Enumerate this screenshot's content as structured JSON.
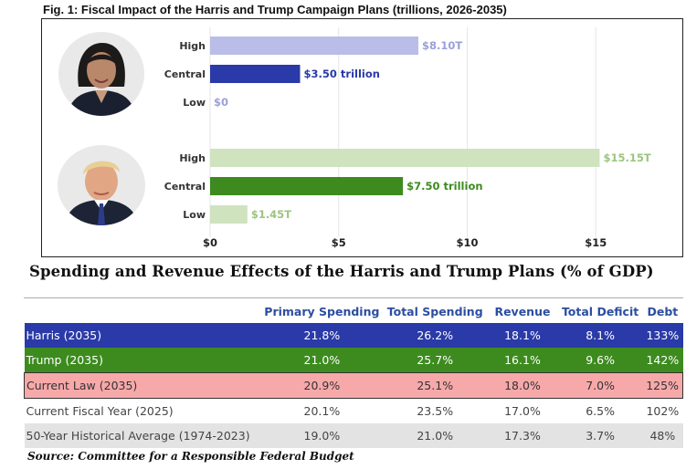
{
  "figure_title": "Fig. 1: Fiscal Impact of the Harris and Trump Campaign Plans (trillions, 2026-2035)",
  "chart_data": {
    "type": "bar",
    "orientation": "horizontal",
    "title": "Fig. 1: Fiscal Impact of the Harris and Trump Campaign Plans (trillions, 2026-2035)",
    "xlim": [
      0,
      17
    ],
    "xticks": [
      0,
      5,
      10,
      15
    ],
    "xtick_labels": [
      "$0",
      "$5",
      "$10",
      "$15"
    ],
    "grid": "vertical",
    "groups": [
      {
        "portrait": "kamala-harris-photo",
        "bars": [
          {
            "category": "High",
            "value": 8.1,
            "label": "$8.10T",
            "color": "#b9bde8",
            "label_color": "#9aa0d8"
          },
          {
            "category": "Central",
            "value": 3.5,
            "label": "$3.50 trillion",
            "color": "#2a3aa8",
            "label_color": "#2a3aa8"
          },
          {
            "category": "Low",
            "value": 0,
            "label": "$0",
            "color": "#b9bde8",
            "label_color": "#9aa0d8"
          }
        ]
      },
      {
        "portrait": "donald-trump-photo",
        "bars": [
          {
            "category": "High",
            "value": 15.15,
            "label": "$15.15T",
            "color": "#cfe3bf",
            "label_color": "#9cc47f"
          },
          {
            "category": "Central",
            "value": 7.5,
            "label": "$7.50 trillion",
            "color": "#3d8b1f",
            "label_color": "#3d8b1f"
          },
          {
            "category": "Low",
            "value": 1.45,
            "label": "$1.45T",
            "color": "#cfe3bf",
            "label_color": "#9cc47f"
          }
        ]
      }
    ]
  },
  "table": {
    "title": "Spending and Revenue Effects of the Harris and Trump Plans (% of GDP)",
    "columns": [
      "",
      "Primary Spending",
      "Total Spending",
      "Revenue",
      "Total Deficit",
      "Debt"
    ],
    "rows": [
      {
        "label": "Harris (2035)",
        "cells": [
          "21.8%",
          "26.2%",
          "18.1%",
          "8.1%",
          "133%"
        ]
      },
      {
        "label": "Trump (2035)",
        "cells": [
          "21.0%",
          "25.7%",
          "16.1%",
          "9.6%",
          "142%"
        ]
      },
      {
        "label": "Current Law (2035)",
        "cells": [
          "20.9%",
          "25.1%",
          "18.0%",
          "7.0%",
          "125%"
        ]
      },
      {
        "label": "Current Fiscal Year (2025)",
        "cells": [
          "20.1%",
          "23.5%",
          "17.0%",
          "6.5%",
          "102%"
        ]
      },
      {
        "label": "50-Year Historical Average (1974-2023)",
        "cells": [
          "19.0%",
          "21.0%",
          "17.3%",
          "3.7%",
          "48%"
        ]
      }
    ]
  },
  "source": "Source: Committee for a Responsible Federal Budget",
  "colors": {
    "harris": "#2a3aa8",
    "trump": "#3d8b1f",
    "current_law": "#f7a9a9",
    "header_text": "#2c4ea0",
    "historical_row": "#e3e3e3"
  }
}
